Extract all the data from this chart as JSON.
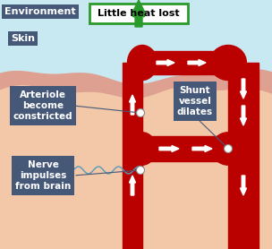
{
  "bg_sky_color": "#c8e8f2",
  "bg_skin_color": "#f2c8a8",
  "skin_wave_color": "#dea090",
  "vessel_color": "#bb0000",
  "label_bg": "#465878",
  "label_text_color": "#ffffff",
  "env_label": "Environment",
  "skin_label": "Skin",
  "arteriole_label": "Arteriole\nbecome\nconstricted",
  "shunt_label": "Shunt\nvessel\ndilates",
  "nerve_label": "Nerve\nimpulses\nfrom brain",
  "heat_label": "Little heat lost",
  "heat_box_color": "#ffffff",
  "heat_box_edge": "#2a9a2a",
  "heat_arrow_color": "#2a9a2a",
  "nerve_line_color": "#5599bb",
  "white": "#ffffff"
}
